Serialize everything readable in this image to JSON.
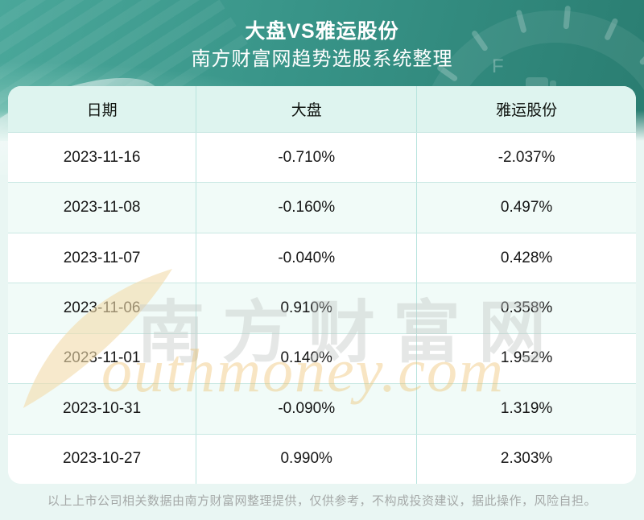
{
  "header": {
    "title_line1": "大盘VS雅运股份",
    "title_line2": "南方财富网趋势选股系统整理"
  },
  "chart_data": {
    "type": "table",
    "title": "大盘VS雅运股份",
    "subtitle": "南方财富网趋势选股系统整理",
    "columns": [
      "日期",
      "大盘",
      "雅运股份"
    ],
    "rows": [
      [
        "2023-11-16",
        "-0.710%",
        "-2.037%"
      ],
      [
        "2023-11-08",
        "-0.160%",
        "0.497%"
      ],
      [
        "2023-11-07",
        "-0.040%",
        "0.428%"
      ],
      [
        "2023-11-06",
        "0.910%",
        "0.358%"
      ],
      [
        "2023-11-01",
        "0.140%",
        "1.952%"
      ],
      [
        "2023-10-31",
        "-0.090%",
        "1.319%"
      ],
      [
        "2023-10-27",
        "0.990%",
        "2.303%"
      ]
    ],
    "categories": [
      "2023-11-16",
      "2023-11-08",
      "2023-11-07",
      "2023-11-06",
      "2023-11-01",
      "2023-10-31",
      "2023-10-27"
    ],
    "series": [
      {
        "name": "大盘",
        "values": [
          -0.71,
          -0.16,
          -0.04,
          0.91,
          0.14,
          -0.09,
          0.99
        ],
        "unit": "%"
      },
      {
        "name": "雅运股份",
        "values": [
          -2.037,
          0.497,
          0.428,
          0.358,
          1.952,
          1.319,
          2.303
        ],
        "unit": "%"
      }
    ]
  },
  "watermark": {
    "cn": "南方财富网",
    "en": "outhmoney.com"
  },
  "footer": {
    "disclaimer": "以上上市公司相关数据由南方财富网整理提供，仅供参考，不构成投资建议，据此操作，风险自担。"
  },
  "colors": {
    "hero_teal_dark": "#2a7d71",
    "hero_teal_mid": "#389488",
    "hero_teal_light": "#4aa79a",
    "page_bg": "#e9f6f3",
    "header_row_bg": "#def4ef",
    "row_tint_bg": "#f1fbf8",
    "grid_line": "#c9e8e3",
    "title_text": "#ffffff",
    "cell_text": "#161616",
    "watermark_gray": "#c3c7c6",
    "watermark_orange": "#eec06c",
    "watermark_tan": "#f3dcab",
    "footer_text": "#a5a9a8"
  }
}
